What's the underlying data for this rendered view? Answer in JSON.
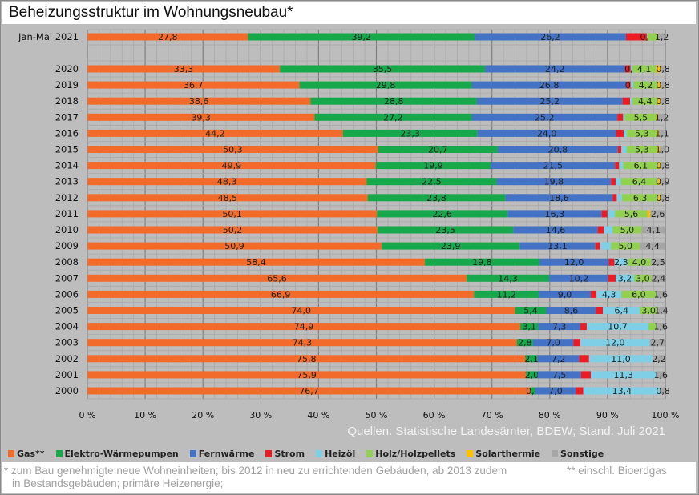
{
  "chart_data": {
    "type": "bar",
    "orientation": "horizontal",
    "stacked": "percent",
    "title": "Beheizungsstruktur im Wohnungsneubau*",
    "categories": [
      "Jan-Mai 2021",
      "2020",
      "2019",
      "2018",
      "2017",
      "2016",
      "2015",
      "2014",
      "2013",
      "2012",
      "2011",
      "2010",
      "2009",
      "2008",
      "2007",
      "2006",
      "2005",
      "2004",
      "2003",
      "2002",
      "2001",
      "2000"
    ],
    "xlim": [
      0,
      100
    ],
    "x_ticks": [
      "0 %",
      "10 %",
      "20 %",
      "30 %",
      "40 %",
      "50 %",
      "60 %",
      "70 %",
      "80 %",
      "90 %",
      "100 %"
    ],
    "grid": true,
    "legend_position": "bottom",
    "series": [
      {
        "name": "Gas**",
        "color": "#f26b2a",
        "values": [
          27.8,
          33.3,
          36.7,
          38.6,
          39.3,
          44.2,
          50.3,
          49.9,
          48.3,
          48.5,
          50.1,
          50.2,
          50.9,
          58.4,
          65.6,
          66.9,
          74.0,
          74.9,
          74.3,
          75.8,
          75.9,
          76.7
        ],
        "labels": [
          "27,8",
          "33,3",
          "36,7",
          "38,6",
          "39,3",
          "44,2",
          "50,3",
          "49,9",
          "48,3",
          "48,5",
          "50,1",
          "50,2",
          "50,9",
          "58,4",
          "65,6",
          "66,9",
          "74,0",
          "74,9",
          "74,3",
          "75,8",
          "75,9",
          "76,7"
        ]
      },
      {
        "name": "Elektro-Wärmepumpen",
        "color": "#17a84b",
        "values": [
          39.2,
          35.5,
          29.8,
          28.8,
          27.2,
          23.3,
          20.7,
          19.9,
          22.5,
          23.8,
          22.6,
          23.5,
          23.9,
          19.8,
          14.3,
          11.2,
          5.4,
          3.1,
          2.8,
          2.1,
          2.0,
          0.8
        ],
        "labels": [
          "39,2",
          "35,5",
          "29,8",
          "28,8",
          "27,2",
          "23,3",
          "20,7",
          "19,9",
          "22,5",
          "23,8",
          "22,6",
          "23,5",
          "23,9",
          "19,8",
          "14,3",
          "11,2",
          "5,4",
          "3,1",
          "2,8",
          "2,1",
          "2,0",
          "0,8"
        ]
      },
      {
        "name": "Fernwärme",
        "color": "#4472c4",
        "values": [
          26.2,
          24.2,
          26.8,
          25.2,
          25.2,
          24.0,
          20.8,
          21.5,
          19.8,
          18.6,
          16.3,
          14.6,
          13.1,
          12.0,
          10.2,
          9.0,
          8.6,
          7.3,
          7.0,
          7.2,
          7.5,
          7.0
        ],
        "labels": [
          "26,2",
          "24,2",
          "26,8",
          "25,2",
          "25,2",
          "24,0",
          "20,8",
          "21,5",
          "19,8",
          "18,6",
          "16,3",
          "14,6",
          "13,1",
          "12,0",
          "10,2",
          "9,0",
          "8,6",
          "7,3",
          "7,0",
          "7,2",
          "7,5",
          "7,0"
        ]
      },
      {
        "name": "Strom",
        "color": "#ed1c24",
        "values": [
          3.6,
          1.0,
          0.7,
          1.3,
          1.0,
          1.3,
          0.6,
          0.7,
          0.8,
          0.7,
          1.0,
          1.1,
          0.8,
          1.0,
          1.3,
          1.0,
          1.2,
          1.1,
          1.2,
          1.7,
          1.7,
          1.3
        ],
        "labels": [
          "",
          "",
          "",
          "",
          "",
          "",
          "",
          "",
          "",
          "",
          "",
          "",
          "",
          "",
          "",
          "",
          "",
          "",
          "",
          "",
          "",
          ""
        ]
      },
      {
        "name": "Heizöl",
        "color": "#7fd0e6",
        "values": [
          0.1,
          0.3,
          0.5,
          0.4,
          0.3,
          0.5,
          0.9,
          0.7,
          0.9,
          0.9,
          1.3,
          1.5,
          1.9,
          2.3,
          3.2,
          4.3,
          6.4,
          10.7,
          12.0,
          11.0,
          11.3,
          13.4
        ],
        "labels": [
          "0,1",
          "0,3",
          "0,5",
          "",
          "",
          "",
          "",
          "",
          "",
          "",
          "",
          "",
          "",
          "2,3",
          "3,2",
          "4,3",
          "6,4",
          "10,7",
          "12,0",
          "11,0",
          "11,3",
          "13,4"
        ]
      },
      {
        "name": "Holz/Holzpellets",
        "color": "#92d050",
        "values": [
          1.7,
          4.1,
          4.2,
          4.4,
          5.5,
          5.3,
          5.3,
          6.1,
          6.4,
          6.3,
          5.6,
          5.0,
          5.0,
          4.0,
          3.0,
          6.0,
          3.0,
          1.3,
          0,
          0,
          0,
          0
        ],
        "labels": [
          "",
          "4,1",
          "4,2",
          "4,4",
          "5,5",
          "5,3",
          "5,3",
          "6,1",
          "6,4",
          "6,3",
          "5,6",
          "5,0",
          "5,0",
          "4,0",
          "3,0",
          "6,0",
          "3,0",
          "",
          "",
          "",
          "",
          ""
        ]
      },
      {
        "name": "Solarthermie",
        "color": "#ffc000",
        "values": [
          0.2,
          0.8,
          0.5,
          0.5,
          0.3,
          0.3,
          0.4,
          0.4,
          0.4,
          0.4,
          0.5,
          0,
          0,
          0,
          0,
          0,
          0,
          0,
          0,
          0,
          0,
          0
        ],
        "labels": [
          "",
          "",
          "",
          "",
          "",
          "",
          "",
          "",
          "",
          "",
          "",
          "",
          "",
          "",
          "",
          "",
          "",
          "",
          "",
          "",
          "",
          ""
        ]
      },
      {
        "name": "Sonstige",
        "color": "#a6a6a6",
        "values": [
          1.2,
          0.8,
          0.8,
          0.8,
          1.2,
          1.1,
          1.0,
          0.8,
          0.9,
          0.8,
          2.6,
          4.1,
          4.4,
          2.5,
          2.4,
          1.6,
          1.4,
          1.6,
          2.7,
          2.2,
          1.6,
          0.8
        ],
        "labels": [
          "1,2",
          "0,8",
          "0,8",
          "0,8",
          "1,2",
          "1,1",
          "1,0",
          "0,8",
          "0,9",
          "0,8",
          "2,6",
          "4,1",
          "4,4",
          "2,5",
          "2,4",
          "1,6",
          "1,4",
          "1,6",
          "2,7",
          "2,2",
          "1,6",
          "0,8"
        ]
      }
    ]
  },
  "source": "Quellen: Statistische Landesämter, BDEW; Stand: Juli 2021",
  "footnote": {
    "line1": "* zum Bau genehmigte neue Wohneinheiten; bis 2012 in neu zu errichtenden Gebäuden, ab 2013 zudem",
    "line2": "in Bestandsgebäuden; primäre Heizenergie;",
    "gas_note": "**  einschl. Bioerdgas"
  }
}
